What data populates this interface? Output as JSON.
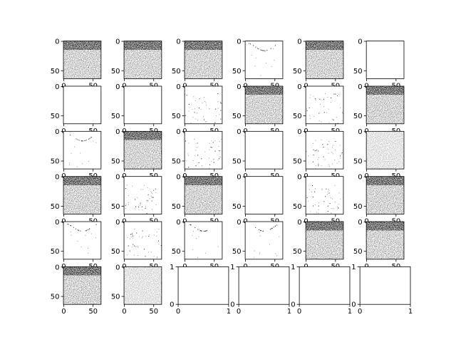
{
  "chart_data": {
    "type": "image_grid",
    "rows": 6,
    "cols": 6,
    "image_axes": {
      "xlim": [
        -0.5,
        63.5
      ],
      "ylim": [
        63.5,
        -0.5
      ],
      "xticks": [
        0,
        50
      ],
      "yticks": [
        0,
        50
      ]
    },
    "empty_axes": {
      "xlim": [
        0,
        1
      ],
      "ylim": [
        0,
        1
      ],
      "xticks": [
        0,
        1
      ],
      "yticks": [
        0,
        1
      ]
    },
    "panels": [
      "image",
      "image",
      "image",
      "image",
      "image",
      "image",
      "image",
      "image",
      "image",
      "image",
      "image",
      "image",
      "image",
      "image",
      "image",
      "image",
      "image",
      "image",
      "image",
      "image",
      "image",
      "image",
      "image",
      "image",
      "image",
      "image",
      "image",
      "image",
      "image",
      "image",
      "image",
      "image",
      "empty",
      "empty",
      "empty",
      "empty"
    ]
  }
}
